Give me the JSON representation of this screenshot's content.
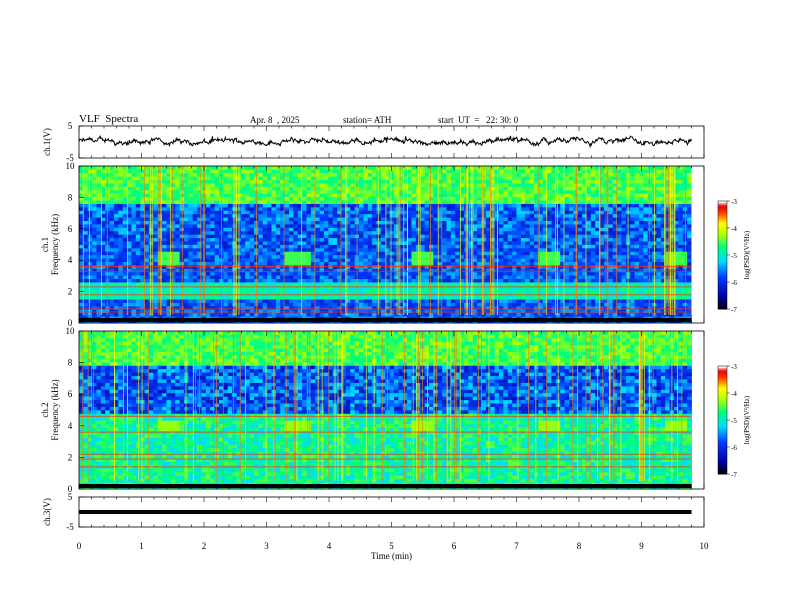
{
  "header": {
    "title": "VLF  Spectra",
    "date": "Apr. 8  , 2025",
    "station": "station= ATH",
    "start": "start  UT  =   22: 30: 0"
  },
  "chart_data": [
    {
      "type": "line",
      "panel": "ch1-waveform",
      "ylabel": "ch.1(V)",
      "ylim": [
        -5,
        5
      ],
      "yticks": [
        "5",
        "-5"
      ],
      "xlim": [
        0,
        10
      ],
      "series": [
        {
          "x": [
            0,
            9.8
          ],
          "values": [
            0.2,
            0.2
          ]
        }
      ]
    },
    {
      "type": "heatmap",
      "panel": "ch1-spectrogram",
      "ylabel": "ch.1\nFrequency (kHz)",
      "ylim": [
        0,
        10
      ],
      "yticks": [
        "0",
        "2",
        "4",
        "6",
        "8",
        "10"
      ],
      "xlim": [
        0,
        10
      ],
      "data_xrange": [
        0,
        9.8
      ],
      "colorbar": {
        "label": "log(PSD)(V²/Hz)",
        "range": [
          -7,
          -3
        ],
        "ticks": [
          "-3",
          "-4",
          "-5",
          "-6",
          "-7"
        ]
      }
    },
    {
      "type": "heatmap",
      "panel": "ch2-spectrogram",
      "ylabel": "ch.2\nFrequency (kHz)",
      "ylim": [
        0,
        10
      ],
      "yticks": [
        "0",
        "2",
        "4",
        "6",
        "8",
        "10"
      ],
      "xlim": [
        0,
        10
      ],
      "data_xrange": [
        0,
        9.8
      ],
      "colorbar": {
        "label": "log(PSD)(V²/Hz)",
        "range": [
          -7,
          -3
        ],
        "ticks": [
          "-3",
          "-4",
          "-5",
          "-6",
          "-7"
        ]
      }
    },
    {
      "type": "line",
      "panel": "ch3-waveform",
      "ylabel": "ch.3(V)",
      "ylim": [
        -5,
        5
      ],
      "yticks": [
        "5",
        "-5"
      ],
      "xlim": [
        0,
        10
      ],
      "xticks": [
        "0",
        "1",
        "2",
        "3",
        "4",
        "5",
        "6",
        "7",
        "8",
        "9",
        "10"
      ],
      "xlabel": "Time  (min)",
      "series": [
        {
          "x": [
            0,
            9.8
          ],
          "values": [
            0,
            0
          ]
        }
      ]
    }
  ]
}
